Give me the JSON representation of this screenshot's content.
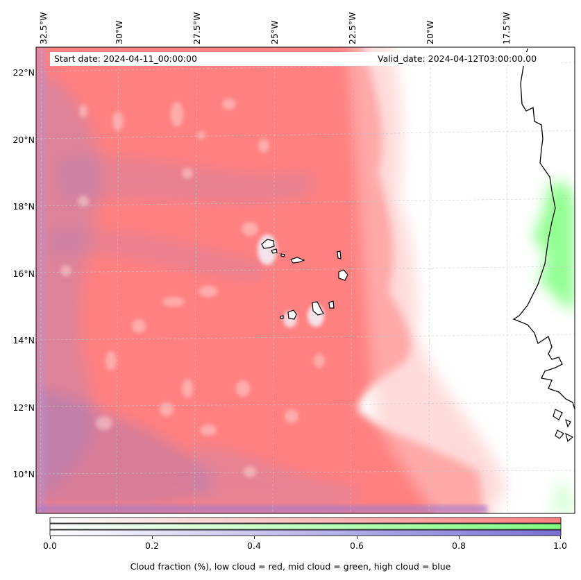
{
  "map": {
    "title_start": "Start date: 2024-04-11_00:00:00",
    "title_valid": "Valid_date: 2024-04-12T03:00:00.00",
    "longitude_labels": [
      "32.5°W",
      "30°W",
      "27.5°W",
      "25°W",
      "22.5°W",
      "20°W",
      "17.5°W"
    ],
    "latitude_labels": [
      "22°N",
      "20°N",
      "18°N",
      "16°N",
      "14°N",
      "12°N",
      "10°N"
    ],
    "extent": {
      "lon_min": -32.8,
      "lon_max": -15.2,
      "lat_min": 8.9,
      "lat_max": 22.8
    },
    "layers": {
      "low_cloud_color": "#ff7f7f",
      "mid_cloud_color": "#80ff80",
      "high_cloud_color": "#7a6fd6",
      "coastline_color": "#000000",
      "grid_color": "#c8c8c8"
    },
    "islands": [
      "santo-antao",
      "sao-vicente",
      "santa-luzia",
      "sao-nicolau",
      "sal",
      "boa-vista",
      "maio",
      "santiago",
      "fogo",
      "brava"
    ]
  },
  "colorbar": {
    "ticks": [
      "0.0",
      "0.2",
      "0.4",
      "0.6",
      "0.8",
      "1.0"
    ],
    "label": "Cloud fraction (%), low cloud = red, mid cloud = green, high cloud = blue",
    "rows": [
      {
        "name": "low",
        "color": "#ff7f7f"
      },
      {
        "name": "mid",
        "color": "#80ff80"
      },
      {
        "name": "high",
        "color": "#7a6fd6"
      }
    ]
  }
}
